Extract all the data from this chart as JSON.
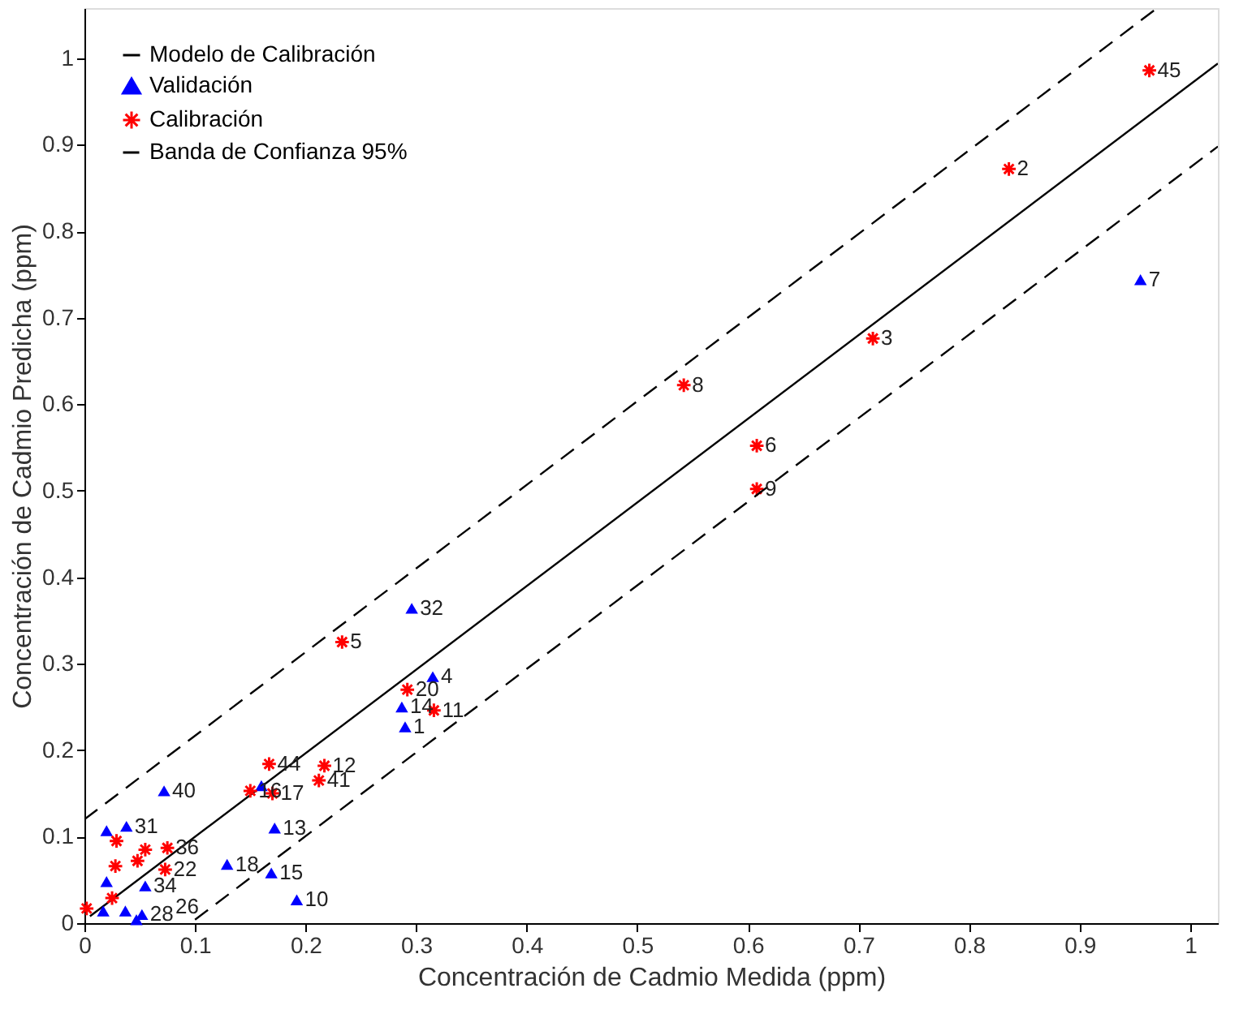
{
  "chart_data": {
    "type": "scatter",
    "xlabel": "Concentración de Cadmio Medida (ppm)",
    "ylabel": "Concentración de Cadmio Predicha (ppm)",
    "xlim": [
      0,
      1.025
    ],
    "ylim": [
      0,
      1.058
    ],
    "xticks": [
      0,
      0.1,
      0.2,
      0.3,
      0.4,
      0.5,
      0.6,
      0.7,
      0.8,
      0.9,
      1
    ],
    "yticks": [
      0,
      0.1,
      0.2,
      0.3,
      0.4,
      0.5,
      0.6,
      0.7,
      0.8,
      0.9,
      1
    ],
    "grid": false,
    "legend": "top left",
    "series": [
      {
        "name": "Modelo de Calibración",
        "type": "line",
        "color": "#000000",
        "line_style": "solid",
        "x": [
          0.005,
          1.025
        ],
        "values": [
          0.008,
          0.994
        ]
      },
      {
        "name": "Validación",
        "color": "#0000ff",
        "marker": "triangle",
        "x": [
          0.955,
          0.296,
          0.315,
          0.287,
          0.29,
          0.16,
          0.072,
          0.172,
          0.129,
          0.169,
          0.192,
          0.02,
          0.038,
          0.02,
          0.055,
          0.017,
          0.052,
          0.047,
          0.037
        ],
        "values": [
          0.744,
          0.364,
          0.285,
          0.25,
          0.227,
          0.159,
          0.153,
          0.11,
          0.068,
          0.058,
          0.027,
          0.107,
          0.112,
          0.048,
          0.043,
          0.014,
          0.01,
          0.004,
          0.014
        ]
      },
      {
        "name": "Calibración",
        "color": "#ff0000",
        "marker": "cross",
        "x": [
          0.233,
          0.542,
          0.836,
          0.963,
          0.713,
          0.608,
          0.608,
          0.292,
          0.316,
          0.167,
          0.217,
          0.212,
          0.15,
          0.17,
          0.029,
          0.055,
          0.075,
          0.028,
          0.048,
          0.073,
          0.002,
          0.025
        ],
        "values": [
          0.325,
          0.622,
          0.872,
          0.986,
          0.676,
          0.552,
          0.502,
          0.27,
          0.246,
          0.184,
          0.182,
          0.165,
          0.153,
          0.15,
          0.095,
          0.085,
          0.087,
          0.066,
          0.072,
          0.062,
          0.017,
          0.029
        ]
      },
      {
        "name": "Banda de Confianza 95%",
        "type": "line",
        "color": "#000000",
        "line_style": "dashed",
        "x": [
          0,
          0.97
        ],
        "values": [
          0.12,
          1.058
        ]
      },
      {
        "type": "line",
        "color": "#000000",
        "line_style": "dashed",
        "x": [
          0.1,
          1.025
        ],
        "values": [
          0.004,
          0.898
        ]
      }
    ],
    "annotations": [
      {
        "text": "7",
        "x": 0.955,
        "y": 0.744
      },
      {
        "text": "32",
        "x": 0.296,
        "y": 0.364
      },
      {
        "text": "4",
        "x": 0.315,
        "y": 0.285
      },
      {
        "text": "14",
        "x": 0.287,
        "y": 0.25
      },
      {
        "text": "1",
        "x": 0.29,
        "y": 0.227
      },
      {
        "text": "40",
        "x": 0.072,
        "y": 0.153
      },
      {
        "text": "13",
        "x": 0.172,
        "y": 0.11
      },
      {
        "text": "18",
        "x": 0.129,
        "y": 0.068
      },
      {
        "text": "15",
        "x": 0.169,
        "y": 0.058
      },
      {
        "text": "10",
        "x": 0.192,
        "y": 0.027
      },
      {
        "text": "31",
        "x": 0.038,
        "y": 0.112
      },
      {
        "text": "34",
        "x": 0.055,
        "y": 0.043
      },
      {
        "text": "28",
        "x": 0.052,
        "y": 0.01
      },
      {
        "text": "26",
        "x": 0.047,
        "y": 0.004
      },
      {
        "text": "5",
        "x": 0.233,
        "y": 0.325
      },
      {
        "text": "8",
        "x": 0.542,
        "y": 0.622
      },
      {
        "text": "2",
        "x": 0.836,
        "y": 0.872
      },
      {
        "text": "45",
        "x": 0.963,
        "y": 0.986
      },
      {
        "text": "3",
        "x": 0.713,
        "y": 0.676
      },
      {
        "text": "6",
        "x": 0.608,
        "y": 0.552
      },
      {
        "text": "9",
        "x": 0.608,
        "y": 0.502
      },
      {
        "text": "20",
        "x": 0.292,
        "y": 0.27
      },
      {
        "text": "11",
        "x": 0.316,
        "y": 0.246
      },
      {
        "text": "44",
        "x": 0.167,
        "y": 0.184
      },
      {
        "text": "12",
        "x": 0.217,
        "y": 0.182
      },
      {
        "text": "41",
        "x": 0.212,
        "y": 0.165
      },
      {
        "text": "16",
        "x": 0.15,
        "y": 0.153
      },
      {
        "text": "17",
        "x": 0.17,
        "y": 0.15
      },
      {
        "text": "36",
        "x": 0.075,
        "y": 0.087
      },
      {
        "text": "22",
        "x": 0.073,
        "y": 0.062
      }
    ]
  }
}
